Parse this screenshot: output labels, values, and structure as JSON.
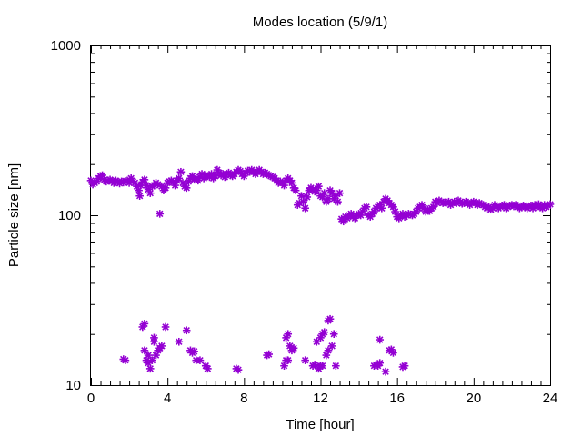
{
  "chart_data": {
    "type": "scatter",
    "title": "Modes location (5/9/1)",
    "xlabel": "Time [hour]",
    "ylabel": "Particle size [nm]",
    "xlim": [
      0,
      24
    ],
    "ylim": [
      10,
      1000
    ],
    "yscale": "log",
    "grid": false,
    "x_ticks": [
      0,
      4,
      8,
      12,
      16,
      20,
      24
    ],
    "x_tick_labels": [
      "0",
      "4",
      "8",
      "12",
      "16",
      "20",
      "24"
    ],
    "y_ticks": [
      10,
      100,
      1000
    ],
    "y_tick_labels": [
      "10",
      "100",
      "1000"
    ],
    "marker_color": "#9400D3",
    "series": [
      {
        "points": [
          [
            0.0,
            160
          ],
          [
            0.1,
            152
          ],
          [
            0.2,
            155
          ],
          [
            0.3,
            158
          ],
          [
            0.4,
            165
          ],
          [
            0.5,
            170
          ],
          [
            0.6,
            172
          ],
          [
            0.7,
            162
          ],
          [
            0.8,
            158
          ],
          [
            0.9,
            160
          ],
          [
            1.0,
            162
          ],
          [
            1.1,
            158
          ],
          [
            1.2,
            155
          ],
          [
            1.3,
            160
          ],
          [
            1.4,
            157
          ],
          [
            1.5,
            154
          ],
          [
            1.6,
            158
          ],
          [
            1.7,
            156
          ],
          [
            1.8,
            159
          ],
          [
            1.9,
            160
          ],
          [
            2.0,
            155
          ],
          [
            2.1,
            165
          ],
          [
            2.2,
            158
          ],
          [
            2.3,
            155
          ],
          [
            2.4,
            148
          ],
          [
            2.5,
            140
          ],
          [
            2.55,
            130
          ],
          [
            2.6,
            150
          ],
          [
            2.7,
            157
          ],
          [
            2.8,
            162
          ],
          [
            2.9,
            150
          ],
          [
            3.0,
            142
          ],
          [
            3.1,
            135
          ],
          [
            3.2,
            148
          ],
          [
            3.3,
            150
          ],
          [
            3.4,
            155
          ],
          [
            3.5,
            152
          ],
          [
            3.6,
            102
          ],
          [
            3.7,
            148
          ],
          [
            3.8,
            140
          ],
          [
            3.9,
            145
          ],
          [
            4.0,
            155
          ],
          [
            4.1,
            158
          ],
          [
            4.2,
            160
          ],
          [
            4.3,
            157
          ],
          [
            4.4,
            150
          ],
          [
            4.5,
            160
          ],
          [
            4.6,
            165
          ],
          [
            4.7,
            180
          ],
          [
            4.8,
            155
          ],
          [
            4.9,
            148
          ],
          [
            5.0,
            145
          ],
          [
            5.1,
            158
          ],
          [
            5.2,
            165
          ],
          [
            5.3,
            170
          ],
          [
            5.4,
            162
          ],
          [
            5.5,
            165
          ],
          [
            5.6,
            160
          ],
          [
            5.7,
            168
          ],
          [
            5.8,
            175
          ],
          [
            5.9,
            165
          ],
          [
            6.0,
            172
          ],
          [
            6.1,
            170
          ],
          [
            6.2,
            168
          ],
          [
            6.3,
            175
          ],
          [
            6.4,
            165
          ],
          [
            6.5,
            170
          ],
          [
            6.6,
            185
          ],
          [
            6.7,
            178
          ],
          [
            6.8,
            172
          ],
          [
            6.9,
            175
          ],
          [
            7.0,
            168
          ],
          [
            7.1,
            175
          ],
          [
            7.2,
            178
          ],
          [
            7.3,
            172
          ],
          [
            7.4,
            170
          ],
          [
            7.5,
            175
          ],
          [
            7.6,
            180
          ],
          [
            7.7,
            185
          ],
          [
            7.8,
            182
          ],
          [
            7.9,
            175
          ],
          [
            8.0,
            170
          ],
          [
            8.1,
            178
          ],
          [
            8.2,
            183
          ],
          [
            8.3,
            180
          ],
          [
            8.4,
            185
          ],
          [
            8.5,
            180
          ],
          [
            8.6,
            175
          ],
          [
            8.7,
            180
          ],
          [
            8.8,
            185
          ],
          [
            8.9,
            180
          ],
          [
            9.0,
            175
          ],
          [
            9.1,
            178
          ],
          [
            9.2,
            175
          ],
          [
            9.3,
            172
          ],
          [
            9.4,
            170
          ],
          [
            9.5,
            168
          ],
          [
            9.6,
            165
          ],
          [
            9.7,
            160
          ],
          [
            9.8,
            155
          ],
          [
            9.9,
            158
          ],
          [
            10.0,
            155
          ],
          [
            10.1,
            150
          ],
          [
            10.2,
            160
          ],
          [
            10.3,
            165
          ],
          [
            10.4,
            160
          ],
          [
            10.5,
            155
          ],
          [
            10.6,
            145
          ],
          [
            10.7,
            140
          ],
          [
            10.8,
            115
          ],
          [
            10.9,
            118
          ],
          [
            11.0,
            130
          ],
          [
            11.1,
            120
          ],
          [
            11.2,
            110
          ],
          [
            11.3,
            128
          ],
          [
            11.4,
            140
          ],
          [
            11.5,
            145
          ],
          [
            11.6,
            142
          ],
          [
            11.7,
            138
          ],
          [
            11.8,
            140
          ],
          [
            11.9,
            148
          ],
          [
            12.0,
            130
          ],
          [
            12.1,
            128
          ],
          [
            12.2,
            135
          ],
          [
            12.3,
            120
          ],
          [
            12.4,
            125
          ],
          [
            12.5,
            140
          ],
          [
            12.6,
            135
          ],
          [
            12.7,
            125
          ],
          [
            12.8,
            130
          ],
          [
            12.9,
            120
          ],
          [
            13.0,
            135
          ],
          [
            13.1,
            95
          ],
          [
            13.2,
            92
          ],
          [
            13.3,
            98
          ],
          [
            13.4,
            96
          ],
          [
            13.5,
            100
          ],
          [
            13.6,
            102
          ],
          [
            13.7,
            98
          ],
          [
            13.8,
            96
          ],
          [
            13.9,
            100
          ],
          [
            14.0,
            102
          ],
          [
            14.1,
            100
          ],
          [
            14.2,
            105
          ],
          [
            14.3,
            110
          ],
          [
            14.4,
            112
          ],
          [
            14.5,
            100
          ],
          [
            14.6,
            98
          ],
          [
            14.7,
            102
          ],
          [
            14.8,
            105
          ],
          [
            14.9,
            110
          ],
          [
            15.0,
            112
          ],
          [
            15.1,
            115
          ],
          [
            15.2,
            110
          ],
          [
            15.3,
            120
          ],
          [
            15.4,
            125
          ],
          [
            15.5,
            122
          ],
          [
            15.6,
            118
          ],
          [
            15.7,
            115
          ],
          [
            15.8,
            112
          ],
          [
            15.9,
            105
          ],
          [
            16.0,
            98
          ],
          [
            16.1,
            96
          ],
          [
            16.2,
            100
          ],
          [
            16.3,
            102
          ],
          [
            16.4,
            98
          ],
          [
            16.5,
            100
          ],
          [
            16.6,
            102
          ],
          [
            16.7,
            101
          ],
          [
            16.8,
            100
          ],
          [
            16.9,
            102
          ],
          [
            17.0,
            105
          ],
          [
            17.1,
            110
          ],
          [
            17.2,
            112
          ],
          [
            17.3,
            115
          ],
          [
            17.4,
            110
          ],
          [
            17.5,
            105
          ],
          [
            17.6,
            108
          ],
          [
            17.7,
            106
          ],
          [
            17.8,
            110
          ],
          [
            17.9,
            112
          ],
          [
            18.0,
            120
          ],
          [
            18.1,
            118
          ],
          [
            18.2,
            122
          ],
          [
            18.3,
            120
          ],
          [
            18.4,
            118
          ],
          [
            18.5,
            119
          ],
          [
            18.6,
            118
          ],
          [
            18.7,
            120
          ],
          [
            18.8,
            115
          ],
          [
            18.9,
            118
          ],
          [
            19.0,
            120
          ],
          [
            19.1,
            118
          ],
          [
            19.2,
            122
          ],
          [
            19.3,
            120
          ],
          [
            19.4,
            117
          ],
          [
            19.5,
            118
          ],
          [
            19.6,
            120
          ],
          [
            19.7,
            118
          ],
          [
            19.8,
            115
          ],
          [
            19.9,
            118
          ],
          [
            20.0,
            120
          ],
          [
            20.1,
            118
          ],
          [
            20.2,
            115
          ],
          [
            20.3,
            118
          ],
          [
            20.4,
            116
          ],
          [
            20.5,
            115
          ],
          [
            20.6,
            112
          ],
          [
            20.7,
            110
          ],
          [
            20.8,
            112
          ],
          [
            20.9,
            108
          ],
          [
            21.0,
            110
          ],
          [
            21.1,
            115
          ],
          [
            21.2,
            112
          ],
          [
            21.3,
            110
          ],
          [
            21.4,
            112
          ],
          [
            21.5,
            114
          ],
          [
            21.6,
            115
          ],
          [
            21.7,
            110
          ],
          [
            21.8,
            112
          ],
          [
            21.9,
            114
          ],
          [
            22.0,
            115
          ],
          [
            22.1,
            113
          ],
          [
            22.2,
            115
          ],
          [
            22.3,
            112
          ],
          [
            22.4,
            110
          ],
          [
            22.5,
            112
          ],
          [
            22.6,
            114
          ],
          [
            22.7,
            112
          ],
          [
            22.8,
            110
          ],
          [
            22.9,
            112
          ],
          [
            23.0,
            114
          ],
          [
            23.1,
            110
          ],
          [
            23.2,
            115
          ],
          [
            23.3,
            112
          ],
          [
            23.4,
            116
          ],
          [
            23.5,
            112
          ],
          [
            23.6,
            110
          ],
          [
            23.7,
            115
          ],
          [
            23.8,
            112
          ],
          [
            23.9,
            114
          ],
          [
            24.0,
            116
          ]
        ]
      },
      {
        "points": [
          [
            1.8,
            14
          ],
          [
            1.7,
            14.2
          ],
          [
            2.7,
            22
          ],
          [
            2.8,
            23
          ],
          [
            2.8,
            16
          ],
          [
            2.9,
            14
          ],
          [
            3.0,
            15
          ],
          [
            3.0,
            13.5
          ],
          [
            3.1,
            12.5
          ],
          [
            3.2,
            14
          ],
          [
            3.3,
            18
          ],
          [
            3.3,
            19
          ],
          [
            3.4,
            15
          ],
          [
            3.5,
            16
          ],
          [
            3.6,
            16.5
          ],
          [
            3.7,
            17
          ],
          [
            3.9,
            22
          ],
          [
            4.6,
            18
          ],
          [
            5.0,
            21
          ],
          [
            5.2,
            16
          ],
          [
            5.3,
            15.5
          ],
          [
            5.4,
            15.8
          ],
          [
            5.5,
            14
          ],
          [
            5.7,
            14
          ],
          [
            6.0,
            13
          ],
          [
            6.1,
            12.5
          ],
          [
            7.6,
            12.5
          ],
          [
            7.7,
            12.3
          ],
          [
            9.2,
            15
          ],
          [
            9.3,
            15.2
          ],
          [
            10.1,
            13
          ],
          [
            10.2,
            14
          ],
          [
            10.2,
            19
          ],
          [
            10.3,
            20
          ],
          [
            10.3,
            14
          ],
          [
            10.4,
            17
          ],
          [
            10.5,
            16
          ],
          [
            10.6,
            16.5
          ],
          [
            11.2,
            14
          ],
          [
            11.6,
            13
          ],
          [
            11.7,
            13.2
          ],
          [
            11.8,
            18
          ],
          [
            11.9,
            12.5
          ],
          [
            12.0,
            13
          ],
          [
            12.0,
            19
          ],
          [
            12.1,
            20
          ],
          [
            12.1,
            13
          ],
          [
            12.2,
            20.5
          ],
          [
            12.3,
            15
          ],
          [
            12.4,
            16
          ],
          [
            12.4,
            24
          ],
          [
            12.5,
            24.5
          ],
          [
            12.6,
            17
          ],
          [
            12.7,
            20
          ],
          [
            12.8,
            13
          ],
          [
            14.8,
            13
          ],
          [
            14.9,
            13.2
          ],
          [
            15.0,
            13
          ],
          [
            15.1,
            13.5
          ],
          [
            15.1,
            18.5
          ],
          [
            15.4,
            12
          ],
          [
            15.6,
            16
          ],
          [
            15.7,
            16.2
          ],
          [
            15.8,
            15.5
          ],
          [
            16.3,
            12.8
          ],
          [
            16.4,
            13
          ]
        ]
      }
    ]
  }
}
